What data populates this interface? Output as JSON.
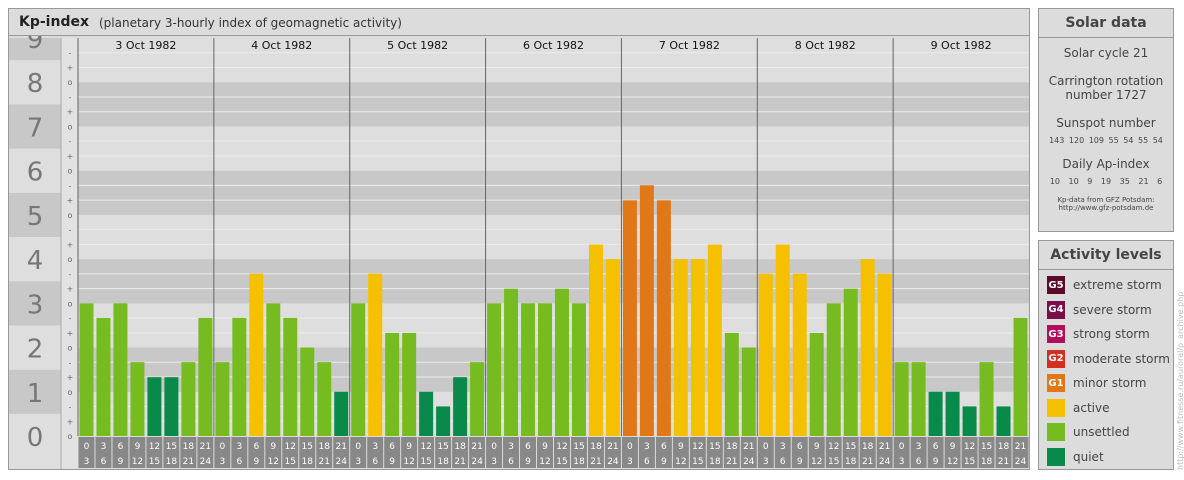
{
  "title": "Kp-index",
  "subtitle": "(planetary 3-hourly index of geomagnetic activity)",
  "chart_data": {
    "type": "bar",
    "title": "Kp-index",
    "subtitle": "(planetary 3-hourly index of geomagnetic activity)",
    "ylim": [
      0,
      9
    ],
    "yticks": [
      "0",
      "1",
      "2",
      "3",
      "4",
      "5",
      "6",
      "7",
      "8",
      "9"
    ],
    "minor_tick_labels": [
      "o",
      "+",
      "-"
    ],
    "days": [
      "3 Oct 1982",
      "4 Oct 1982",
      "5 Oct 1982",
      "6 Oct 1982",
      "7 Oct 1982",
      "8 Oct 1982",
      "9 Oct 1982"
    ],
    "interval_starts": [
      "0",
      "3",
      "6",
      "9",
      "12",
      "15",
      "18",
      "21"
    ],
    "interval_ends": [
      "3",
      "6",
      "9",
      "12",
      "15",
      "18",
      "21",
      "24"
    ],
    "values": [
      [
        3.0,
        2.67,
        3.0,
        1.67,
        1.33,
        1.33,
        1.67,
        2.67
      ],
      [
        1.67,
        2.67,
        3.67,
        3.0,
        2.67,
        2.0,
        1.67,
        1.0
      ],
      [
        3.0,
        3.67,
        2.33,
        2.33,
        1.0,
        0.67,
        1.33,
        1.67
      ],
      [
        3.0,
        3.33,
        3.0,
        3.0,
        3.33,
        3.0,
        4.33,
        4.0
      ],
      [
        5.33,
        5.67,
        5.33,
        4.0,
        4.0,
        4.33,
        2.33,
        2.0
      ],
      [
        3.67,
        4.33,
        3.67,
        2.33,
        3.0,
        3.33,
        4.0,
        3.67
      ],
      [
        1.67,
        1.67,
        1.0,
        1.0,
        0.67,
        1.67,
        0.67,
        2.67
      ]
    ],
    "grid": true
  },
  "solar": {
    "heading": "Solar data",
    "cycle": "Solar cycle 21",
    "carrington_1": "Carrington rotation",
    "carrington_2": "number 1727",
    "sunspot_heading": "Sunspot number",
    "sunspot_values": "143 120 109 55 54 55 54",
    "ap_heading": "Daily Ap-index",
    "ap_values": "10 10 9 19 35 21 6",
    "source_1": "Kp-data from GFZ Potsdam:",
    "source_2": "http://www.gfz-potsdam.de"
  },
  "activity": {
    "heading": "Activity levels",
    "levels": [
      {
        "code": "G5",
        "label": "extreme storm",
        "color": "#5a0a2a"
      },
      {
        "code": "G4",
        "label": "severe storm",
        "color": "#7a0e4a"
      },
      {
        "code": "G3",
        "label": "strong storm",
        "color": "#b0105a"
      },
      {
        "code": "G2",
        "label": "moderate storm",
        "color": "#d33022"
      },
      {
        "code": "G1",
        "label": "minor storm",
        "color": "#e07818"
      },
      {
        "code": "",
        "label": "active",
        "color": "#f5c000"
      },
      {
        "code": "",
        "label": "unsettled",
        "color": "#76bc21"
      },
      {
        "code": "",
        "label": "quiet",
        "color": "#0a8a4a"
      }
    ]
  },
  "watermark": "http://www.fitnesse.ru/auroral/p_archive.php"
}
